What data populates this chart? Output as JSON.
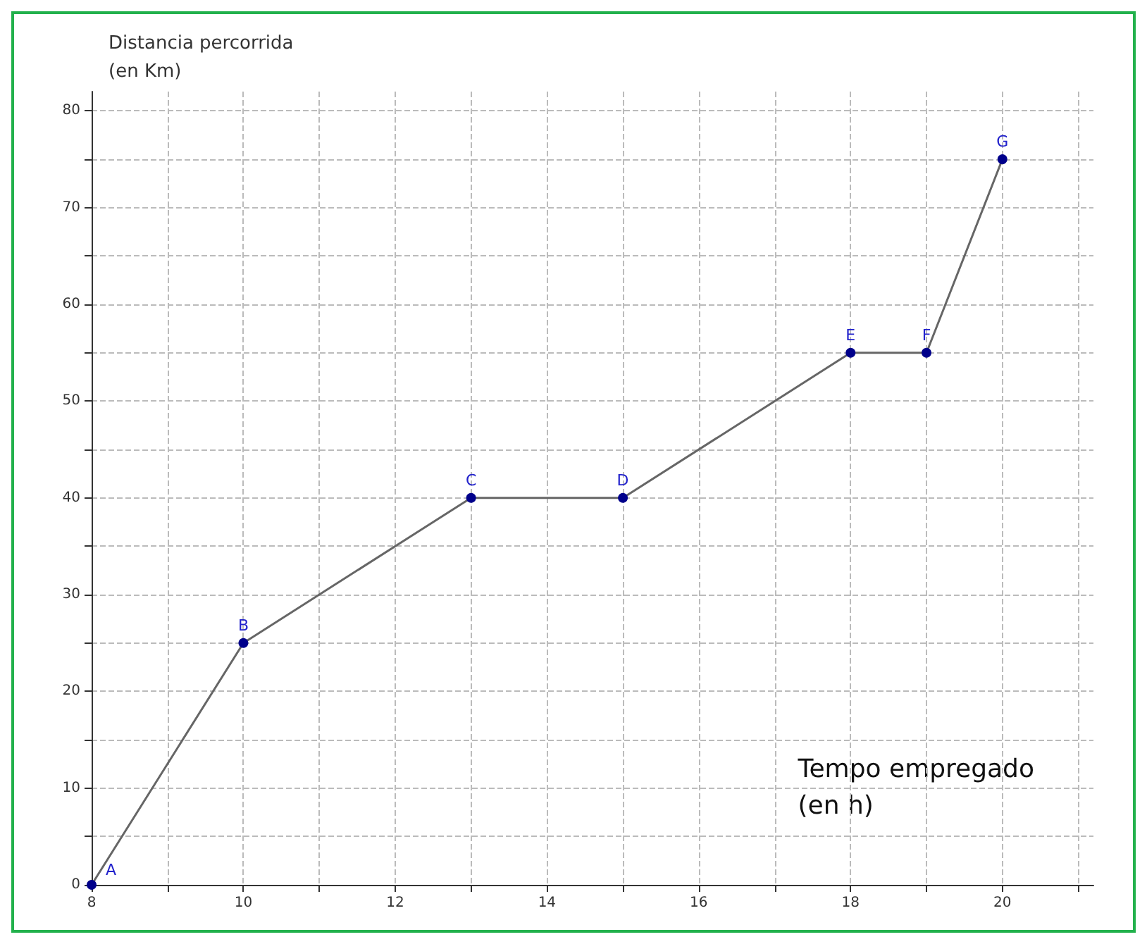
{
  "chart_data": {
    "type": "line",
    "xlabel": "Tempo empregado\n(en h)",
    "ylabel": "Distancia percorrida\n(en Km)",
    "x": [
      8,
      10,
      13,
      15,
      18,
      19,
      20
    ],
    "series": [
      {
        "color": "#666666",
        "values": [
          0,
          25,
          40,
          40,
          55,
          55,
          75
        ]
      }
    ],
    "marker": "circle",
    "line_style": "solid",
    "grid": true,
    "xlim": [
      8,
      21.2
    ],
    "ylim": [
      0,
      82
    ],
    "xticks": [
      8,
      {
        "value": 9,
        "label": null
      },
      10,
      {
        "value": 11,
        "label": null
      },
      12,
      {
        "value": 13,
        "label": null
      },
      14,
      {
        "value": 15,
        "label": null
      },
      16,
      {
        "value": 17,
        "label": null
      },
      18,
      {
        "value": 19,
        "label": null
      },
      20,
      {
        "value": 21,
        "label": null
      }
    ],
    "yticks": [
      0,
      {
        "value": 5,
        "label": null
      },
      10,
      {
        "value": 15,
        "label": null
      },
      20,
      {
        "value": 25,
        "label": null
      },
      30,
      {
        "value": 35,
        "label": null
      },
      40,
      {
        "value": 45,
        "label": null
      },
      50,
      {
        "value": 55,
        "label": null
      },
      60,
      {
        "value": 65,
        "label": null
      },
      70,
      {
        "value": 75,
        "label": null
      },
      80
    ],
    "annotations": [
      {
        "text": "A",
        "x": 8,
        "y": 0
      },
      {
        "text": "B",
        "x": 10,
        "y": 25
      },
      {
        "text": "C",
        "x": 13,
        "y": 40
      },
      {
        "text": "D",
        "x": 15,
        "y": 40
      },
      {
        "text": "E",
        "x": 18,
        "y": 55
      },
      {
        "text": "F",
        "x": 19,
        "y": 55
      },
      {
        "text": "G",
        "x": 20,
        "y": 75
      }
    ]
  }
}
